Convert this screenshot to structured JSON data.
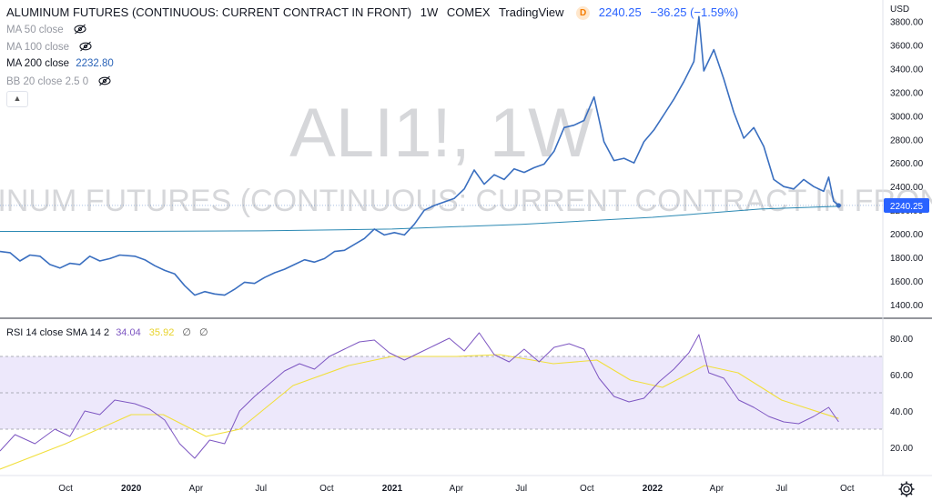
{
  "header": {
    "title": "ALUMINUM FUTURES (CONTINUOUS: CURRENT CONTRACT IN FRONT)",
    "interval": "1W",
    "exchange": "COMEX",
    "source": "TradingView",
    "delay_badge": "D",
    "last": "2240.25",
    "change": "−36.25 (−1.59%)"
  },
  "indicators": [
    {
      "label": "MA 50 close",
      "value": "",
      "hidden": true
    },
    {
      "label": "MA 100 close",
      "value": "",
      "hidden": true
    },
    {
      "label": "MA 200 close",
      "value": "2232.80",
      "hidden": false
    },
    {
      "label": "BB 20 close 2.5 0",
      "value": "",
      "hidden": true
    }
  ],
  "watermark": {
    "symbol": "ALI1!, 1W",
    "description": "ALUMINUM FUTURES (CONTINUOUS: CURRENT CONTRACT IN FRONT)"
  },
  "price_axis": {
    "currency": "USD",
    "last_label": "2240.25"
  },
  "rsi_legend": {
    "label": "RSI 14 close SMA 14 2",
    "rsi": "34.04",
    "sma": "35.92",
    "na1": "∅",
    "na2": "∅"
  },
  "colors": {
    "price": "#3a6fc0",
    "ma200": "#2b89b3",
    "rsi": "#7e57c2",
    "rsi_sma": "#f1df3c",
    "band": "#ede8fb"
  },
  "chart_data": [
    {
      "type": "line",
      "title": "ALUMINUM FUTURES (CONTINUOUS: CURRENT CONTRACT IN FRONT) 1W COMEX",
      "ylabel": "USD",
      "ylim": [
        1300,
        3950
      ],
      "yticks": [
        1400,
        1600,
        1800,
        2000,
        2200,
        2400,
        2600,
        2800,
        3000,
        3200,
        3400,
        3600,
        3800
      ],
      "xticks": [
        "Oct",
        "2020",
        "Jan 2020"
      ],
      "xtick_labels": [
        {
          "date": "2019-10-01",
          "label": "Oct"
        },
        {
          "date": "2020-01-01",
          "label": "2020"
        },
        {
          "date": "2020-04-01",
          "label": "Apr"
        },
        {
          "date": "2020-07-01",
          "label": "Jul"
        },
        {
          "date": "2020-10-01",
          "label": "Oct"
        },
        {
          "date": "2021-01-01",
          "label": "2021"
        },
        {
          "date": "2021-04-01",
          "label": "Apr"
        },
        {
          "date": "2021-07-01",
          "label": "Jul"
        },
        {
          "date": "2021-10-01",
          "label": "Oct"
        },
        {
          "date": "2022-01-01",
          "label": "2022"
        },
        {
          "date": "2022-04-01",
          "label": "Apr"
        },
        {
          "date": "2022-07-01",
          "label": "Jul"
        },
        {
          "date": "2022-10-01",
          "label": "Oct"
        }
      ],
      "series": [
        {
          "name": "Close",
          "points": [
            [
              "2019-07-01",
              1850
            ],
            [
              "2019-07-15",
              1840
            ],
            [
              "2019-07-29",
              1770
            ],
            [
              "2019-08-12",
              1820
            ],
            [
              "2019-08-26",
              1810
            ],
            [
              "2019-09-09",
              1740
            ],
            [
              "2019-09-23",
              1710
            ],
            [
              "2019-10-07",
              1750
            ],
            [
              "2019-10-21",
              1740
            ],
            [
              "2019-11-04",
              1810
            ],
            [
              "2019-11-18",
              1770
            ],
            [
              "2019-12-02",
              1790
            ],
            [
              "2019-12-16",
              1820
            ],
            [
              "2020-01-06",
              1810
            ],
            [
              "2020-01-20",
              1780
            ],
            [
              "2020-02-03",
              1730
            ],
            [
              "2020-02-17",
              1690
            ],
            [
              "2020-03-02",
              1660
            ],
            [
              "2020-03-16",
              1560
            ],
            [
              "2020-03-30",
              1480
            ],
            [
              "2020-04-13",
              1510
            ],
            [
              "2020-04-27",
              1490
            ],
            [
              "2020-05-11",
              1480
            ],
            [
              "2020-05-25",
              1530
            ],
            [
              "2020-06-08",
              1590
            ],
            [
              "2020-06-22",
              1580
            ],
            [
              "2020-07-06",
              1630
            ],
            [
              "2020-07-20",
              1670
            ],
            [
              "2020-08-03",
              1700
            ],
            [
              "2020-08-17",
              1740
            ],
            [
              "2020-08-31",
              1780
            ],
            [
              "2020-09-14",
              1760
            ],
            [
              "2020-09-28",
              1790
            ],
            [
              "2020-10-12",
              1850
            ],
            [
              "2020-10-26",
              1860
            ],
            [
              "2020-11-09",
              1910
            ],
            [
              "2020-11-23",
              1960
            ],
            [
              "2020-12-07",
              2040
            ],
            [
              "2020-12-21",
              1990
            ],
            [
              "2021-01-04",
              2010
            ],
            [
              "2021-01-18",
              1990
            ],
            [
              "2021-02-01",
              2080
            ],
            [
              "2021-02-15",
              2200
            ],
            [
              "2021-03-01",
              2240
            ],
            [
              "2021-03-15",
              2270
            ],
            [
              "2021-03-29",
              2300
            ],
            [
              "2021-04-12",
              2380
            ],
            [
              "2021-04-26",
              2540
            ],
            [
              "2021-05-10",
              2420
            ],
            [
              "2021-05-24",
              2500
            ],
            [
              "2021-06-07",
              2460
            ],
            [
              "2021-06-21",
              2550
            ],
            [
              "2021-07-05",
              2520
            ],
            [
              "2021-07-19",
              2560
            ],
            [
              "2021-08-02",
              2590
            ],
            [
              "2021-08-16",
              2700
            ],
            [
              "2021-08-30",
              2900
            ],
            [
              "2021-09-13",
              2920
            ],
            [
              "2021-09-27",
              2960
            ],
            [
              "2021-10-11",
              3160
            ],
            [
              "2021-10-25",
              2780
            ],
            [
              "2021-11-08",
              2620
            ],
            [
              "2021-11-22",
              2640
            ],
            [
              "2021-12-06",
              2600
            ],
            [
              "2021-12-20",
              2780
            ],
            [
              "2022-01-03",
              2880
            ],
            [
              "2022-01-17",
              3010
            ],
            [
              "2022-01-31",
              3140
            ],
            [
              "2022-02-14",
              3290
            ],
            [
              "2022-02-28",
              3460
            ],
            [
              "2022-03-07",
              3840
            ],
            [
              "2022-03-14",
              3380
            ],
            [
              "2022-03-28",
              3560
            ],
            [
              "2022-04-11",
              3310
            ],
            [
              "2022-04-25",
              3030
            ],
            [
              "2022-05-09",
              2810
            ],
            [
              "2022-05-23",
              2900
            ],
            [
              "2022-06-06",
              2740
            ],
            [
              "2022-06-20",
              2460
            ],
            [
              "2022-07-04",
              2400
            ],
            [
              "2022-07-18",
              2380
            ],
            [
              "2022-08-01",
              2460
            ],
            [
              "2022-08-15",
              2400
            ],
            [
              "2022-08-29",
              2360
            ],
            [
              "2022-09-05",
              2480
            ],
            [
              "2022-09-12",
              2276
            ],
            [
              "2022-09-19",
              2240.25
            ]
          ]
        },
        {
          "name": "MA 200 close",
          "points": [
            [
              "2019-07-01",
              2020
            ],
            [
              "2020-01-01",
              2020
            ],
            [
              "2020-07-01",
              2025
            ],
            [
              "2021-01-01",
              2040
            ],
            [
              "2021-07-01",
              2080
            ],
            [
              "2022-01-01",
              2140
            ],
            [
              "2022-06-01",
              2210
            ],
            [
              "2022-09-19",
              2232.8
            ]
          ]
        }
      ]
    },
    {
      "type": "line",
      "title": "RSI 14 close SMA 14 2",
      "ylim": [
        5,
        90
      ],
      "yticks": [
        20,
        40,
        60,
        80
      ],
      "bands": [
        30,
        50,
        70
      ],
      "series": [
        {
          "name": "RSI",
          "points": [
            [
              "2019-07-01",
              18
            ],
            [
              "2019-07-22",
              27
            ],
            [
              "2019-08-19",
              22
            ],
            [
              "2019-09-16",
              30
            ],
            [
              "2019-10-07",
              26
            ],
            [
              "2019-10-28",
              40
            ],
            [
              "2019-11-18",
              38
            ],
            [
              "2019-12-09",
              46
            ],
            [
              "2020-01-06",
              44
            ],
            [
              "2020-01-27",
              41
            ],
            [
              "2020-02-17",
              35
            ],
            [
              "2020-03-09",
              22
            ],
            [
              "2020-03-30",
              14
            ],
            [
              "2020-04-20",
              24
            ],
            [
              "2020-05-11",
              22
            ],
            [
              "2020-06-01",
              40
            ],
            [
              "2020-06-22",
              48
            ],
            [
              "2020-07-13",
              55
            ],
            [
              "2020-08-03",
              62
            ],
            [
              "2020-08-24",
              66
            ],
            [
              "2020-09-14",
              63
            ],
            [
              "2020-10-05",
              70
            ],
            [
              "2020-10-26",
              74
            ],
            [
              "2020-11-16",
              78
            ],
            [
              "2020-12-07",
              79
            ],
            [
              "2020-12-28",
              72
            ],
            [
              "2021-01-18",
              68
            ],
            [
              "2021-02-08",
              72
            ],
            [
              "2021-03-01",
              76
            ],
            [
              "2021-03-22",
              80
            ],
            [
              "2021-04-12",
              73
            ],
            [
              "2021-05-03",
              83
            ],
            [
              "2021-05-24",
              71
            ],
            [
              "2021-06-14",
              67
            ],
            [
              "2021-07-05",
              74
            ],
            [
              "2021-07-26",
              67
            ],
            [
              "2021-08-16",
              75
            ],
            [
              "2021-09-06",
              77
            ],
            [
              "2021-09-27",
              74
            ],
            [
              "2021-10-18",
              58
            ],
            [
              "2021-11-08",
              48
            ],
            [
              "2021-11-29",
              45
            ],
            [
              "2021-12-20",
              47
            ],
            [
              "2022-01-10",
              56
            ],
            [
              "2022-01-31",
              63
            ],
            [
              "2022-02-21",
              72
            ],
            [
              "2022-03-07",
              82
            ],
            [
              "2022-03-21",
              61
            ],
            [
              "2022-04-11",
              58
            ],
            [
              "2022-05-02",
              46
            ],
            [
              "2022-05-23",
              42
            ],
            [
              "2022-06-13",
              37
            ],
            [
              "2022-07-04",
              34
            ],
            [
              "2022-07-25",
              33
            ],
            [
              "2022-08-15",
              37
            ],
            [
              "2022-09-05",
              42
            ],
            [
              "2022-09-19",
              34.04
            ]
          ]
        },
        {
          "name": "RSI SMA",
          "points": [
            [
              "2019-07-01",
              8
            ],
            [
              "2019-10-01",
              22
            ],
            [
              "2020-01-01",
              38
            ],
            [
              "2020-02-15",
              38
            ],
            [
              "2020-04-15",
              26
            ],
            [
              "2020-06-01",
              30
            ],
            [
              "2020-08-15",
              54
            ],
            [
              "2020-11-01",
              65
            ],
            [
              "2021-01-01",
              70
            ],
            [
              "2021-04-01",
              70
            ],
            [
              "2021-06-01",
              71
            ],
            [
              "2021-08-15",
              66
            ],
            [
              "2021-10-15",
              68
            ],
            [
              "2021-12-01",
              57
            ],
            [
              "2022-01-15",
              53
            ],
            [
              "2022-03-15",
              65
            ],
            [
              "2022-05-01",
              61
            ],
            [
              "2022-07-01",
              46
            ],
            [
              "2022-09-19",
              35.92
            ]
          ]
        }
      ]
    }
  ]
}
